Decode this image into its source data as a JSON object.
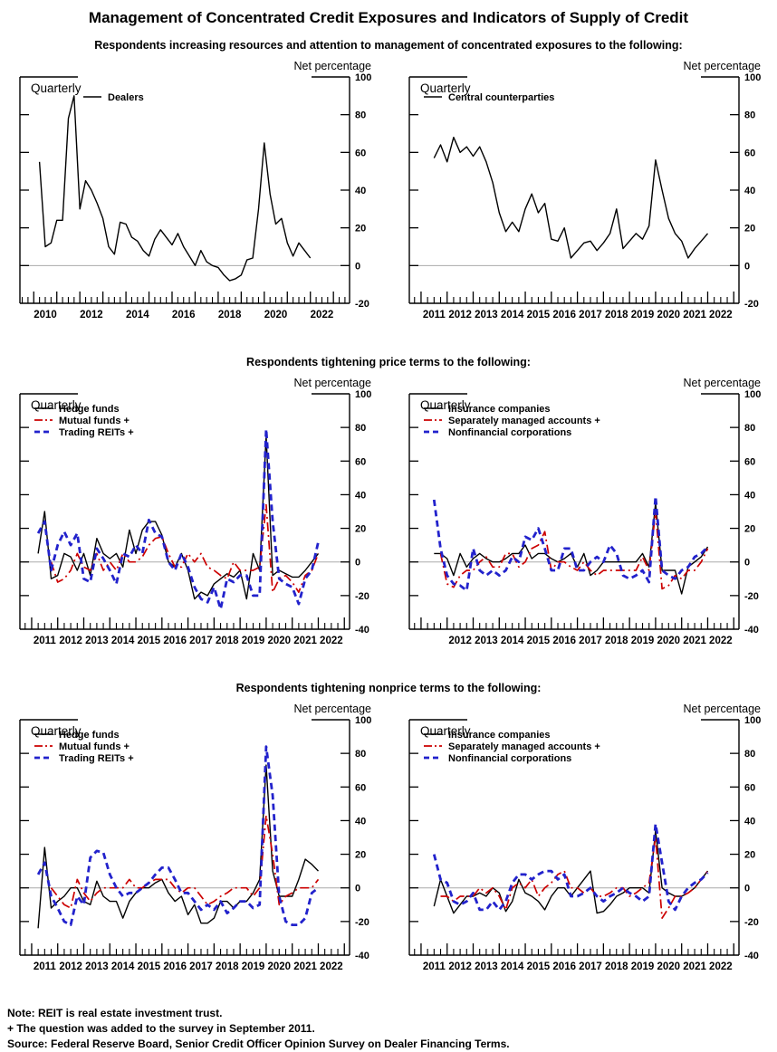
{
  "page": {
    "title": "Management of Concentrated Credit Exposures and Indicators of Supply of Credit",
    "notes": [
      "Note:  REIT is real estate investment trust.",
      "+ The question was added to the survey in September 2011.",
      "Source:  Federal Reserve Board, Senior Credit Officer Opinion Survey on Dealer Financing Terms."
    ]
  },
  "sections": [
    {
      "heading": "Respondents increasing resources and attention to management of concentrated exposures to the following:"
    },
    {
      "heading": "Respondents tightening price terms to the following:"
    },
    {
      "heading": "Respondents tightening nonprice terms to the following:"
    }
  ],
  "palette": {
    "black": "#000000",
    "red": "#cc0000",
    "blue": "#2222cc",
    "zero_line": "#aaaaaa"
  },
  "chart_data": [
    {
      "type": "line",
      "name": "dealers",
      "frequency_label": "Quarterly",
      "axis_label": "Net percentage",
      "ylim": [
        -20,
        100
      ],
      "ytick_step": 20,
      "xlim": [
        2009.4,
        2023.7
      ],
      "xlabel_years": [
        2010,
        2012,
        2014,
        2016,
        2018,
        2020,
        2022
      ],
      "series": [
        {
          "name": "Dealers",
          "color": "#000000",
          "style": "solid",
          "start": 2010.25,
          "step": 0.25,
          "values": [
            55,
            10,
            12,
            24,
            24,
            78,
            90,
            30,
            45,
            40,
            33,
            25,
            10,
            6,
            23,
            22,
            15,
            13,
            8,
            5,
            14,
            19,
            15,
            11,
            17,
            10,
            5,
            0,
            8,
            2,
            0,
            -1,
            -5,
            -8,
            -7,
            -5,
            3,
            4,
            30,
            65,
            38,
            22,
            25,
            12,
            5,
            12,
            8,
            4
          ]
        }
      ]
    },
    {
      "type": "line",
      "name": "central-counterparties",
      "frequency_label": "Quarterly",
      "axis_label": "Net percentage",
      "ylim": [
        -20,
        100
      ],
      "ytick_step": 20,
      "xlim": [
        2010.55,
        2023.2
      ],
      "xlabel_years": [
        2011,
        2012,
        2013,
        2014,
        2015,
        2016,
        2017,
        2018,
        2019,
        2020,
        2021,
        2022
      ],
      "series": [
        {
          "name": "Central counterparties",
          "color": "#000000",
          "style": "solid",
          "start": 2011.5,
          "step": 0.25,
          "values": [
            57,
            64,
            55,
            68,
            60,
            63,
            58,
            63,
            55,
            44,
            28,
            18,
            23,
            18,
            30,
            38,
            28,
            33,
            14,
            13,
            20,
            4,
            8,
            12,
            13,
            8,
            12,
            17,
            30,
            9,
            13,
            17,
            14,
            21,
            56,
            40,
            25,
            17,
            13,
            4,
            9,
            13,
            17
          ]
        }
      ]
    },
    {
      "type": "line",
      "name": "price-terms-funds",
      "frequency_label": "Quarterly",
      "axis_label": "Net percentage",
      "ylim": [
        -40,
        100
      ],
      "ytick_step": 20,
      "xlim": [
        2010.55,
        2023.2
      ],
      "xlabel_years": [
        2011,
        2012,
        2013,
        2014,
        2015,
        2016,
        2017,
        2018,
        2019,
        2020,
        2021,
        2022
      ],
      "series": [
        {
          "name": "Hedge funds",
          "color": "#000000",
          "style": "solid",
          "start": 2011.25,
          "step": 0.25,
          "values": [
            5,
            30,
            -10,
            -8,
            5,
            3,
            -5,
            5,
            -8,
            14,
            5,
            2,
            5,
            -3,
            19,
            5,
            19,
            24,
            24,
            16,
            0,
            -3,
            5,
            -5,
            -22,
            -18,
            -20,
            -13,
            -10,
            -7,
            -9,
            -5,
            -22,
            5,
            -5,
            75,
            -8,
            -5,
            -7,
            -9,
            -9,
            -5,
            0,
            5
          ]
        },
        {
          "name": "Mutual funds +",
          "color": "#cc0000",
          "style": "dashdot",
          "start": 2011.75,
          "step": 0.25,
          "values": [
            0,
            -12,
            -10,
            -5,
            5,
            -3,
            -5,
            5,
            -5,
            0,
            -5,
            5,
            0,
            0,
            3,
            10,
            14,
            15,
            5,
            -3,
            -3,
            5,
            0,
            5,
            -3,
            -5,
            -8,
            -10,
            0,
            -5,
            -5,
            -5,
            -3,
            34,
            -18,
            -10,
            -8,
            -12,
            -18,
            -8,
            -5,
            5
          ]
        },
        {
          "name": "Trading REITs +",
          "color": "#2222cc",
          "style": "dash",
          "start": 2011.25,
          "step": 0.25,
          "values": [
            17,
            24,
            -5,
            10,
            18,
            10,
            17,
            -10,
            -12,
            8,
            2,
            -5,
            -13,
            5,
            3,
            10,
            5,
            25,
            17,
            15,
            0,
            -5,
            5,
            -3,
            -15,
            -22,
            -24,
            -15,
            -28,
            -10,
            -12,
            -8,
            -8,
            -20,
            -20,
            79,
            24,
            -10,
            -13,
            -15,
            -25,
            -10,
            -5,
            12
          ]
        }
      ]
    },
    {
      "type": "line",
      "name": "price-terms-institutions",
      "frequency_label": "Quarterly",
      "axis_label": "Net percentage",
      "ylim": [
        -40,
        100
      ],
      "ytick_step": 20,
      "xlim": [
        2010.55,
        2023.2
      ],
      "xlabel_years": [
        2012,
        2013,
        2014,
        2015,
        2016,
        2017,
        2018,
        2019,
        2020,
        2021,
        2022
      ],
      "series": [
        {
          "name": "Insurance companies",
          "color": "#000000",
          "style": "solid",
          "start": 2011.5,
          "step": 0.25,
          "values": [
            5,
            5,
            2,
            -8,
            5,
            -3,
            2,
            5,
            2,
            0,
            0,
            2,
            5,
            5,
            10,
            2,
            5,
            5,
            2,
            0,
            2,
            5,
            -3,
            5,
            -8,
            -5,
            0,
            0,
            0,
            0,
            0,
            0,
            5,
            -3,
            35,
            -5,
            -5,
            -5,
            -19,
            -3,
            0,
            3,
            9
          ]
        },
        {
          "name": "Separately managed accounts +",
          "color": "#cc0000",
          "style": "dashdot",
          "start": 2011.75,
          "step": 0.25,
          "values": [
            5,
            -13,
            -15,
            -8,
            -5,
            -5,
            0,
            3,
            -3,
            -3,
            5,
            5,
            -3,
            0,
            8,
            10,
            18,
            -5,
            0,
            0,
            -3,
            -5,
            0,
            -5,
            -8,
            -5,
            -5,
            -5,
            -5,
            -5,
            -5,
            3,
            -5,
            30,
            -16,
            -14,
            -8,
            -10,
            -5,
            -5,
            0,
            8
          ]
        },
        {
          "name": "Nonfinancial corporations",
          "color": "#2222cc",
          "style": "dash",
          "start": 2011.5,
          "step": 0.25,
          "values": [
            37,
            8,
            -8,
            -13,
            -14,
            -17,
            8,
            -5,
            -8,
            -5,
            -8,
            -5,
            3,
            0,
            15,
            13,
            20,
            8,
            -5,
            -5,
            8,
            8,
            -5,
            -5,
            0,
            3,
            0,
            10,
            5,
            -8,
            -10,
            -8,
            -5,
            -12,
            39,
            -5,
            -8,
            -10,
            -5,
            -3,
            3,
            5,
            9
          ]
        }
      ]
    },
    {
      "type": "line",
      "name": "nonprice-terms-funds",
      "frequency_label": "Quarterly",
      "axis_label": "Net percentage",
      "ylim": [
        -40,
        100
      ],
      "ytick_step": 20,
      "xlim": [
        2010.55,
        2023.2
      ],
      "xlabel_years": [
        2011,
        2012,
        2013,
        2014,
        2015,
        2016,
        2017,
        2018,
        2019,
        2020,
        2021,
        2022
      ],
      "series": [
        {
          "name": "Hedge funds",
          "color": "#000000",
          "style": "solid",
          "start": 2011.25,
          "step": 0.25,
          "values": [
            -24,
            24,
            -12,
            -8,
            -5,
            0,
            0,
            -8,
            -10,
            4,
            -5,
            -8,
            -8,
            -18,
            -8,
            -3,
            0,
            0,
            3,
            5,
            -3,
            -8,
            -5,
            -16,
            -10,
            -21,
            -21,
            -18,
            -8,
            -8,
            -12,
            -8,
            -8,
            -3,
            5,
            73,
            10,
            -5,
            -5,
            -5,
            5,
            17,
            14,
            10
          ]
        },
        {
          "name": "Mutual funds +",
          "color": "#cc0000",
          "style": "dashdot",
          "start": 2011.75,
          "step": 0.25,
          "values": [
            0,
            -5,
            -10,
            -12,
            5,
            -3,
            -8,
            -3,
            0,
            0,
            0,
            0,
            5,
            0,
            0,
            3,
            5,
            5,
            5,
            0,
            -3,
            0,
            0,
            -5,
            -10,
            -8,
            -5,
            -3,
            0,
            0,
            0,
            -5,
            0,
            43,
            20,
            -10,
            -5,
            -3,
            0,
            0,
            0,
            5
          ]
        },
        {
          "name": "Trading REITs +",
          "color": "#2222cc",
          "style": "dash",
          "start": 2011.25,
          "step": 0.25,
          "values": [
            8,
            15,
            -5,
            -12,
            -20,
            -22,
            -5,
            -10,
            18,
            22,
            21,
            8,
            0,
            -5,
            -3,
            -3,
            0,
            3,
            8,
            12,
            12,
            5,
            -3,
            -3,
            -8,
            -13,
            -10,
            -13,
            -8,
            -15,
            -12,
            -8,
            -8,
            -12,
            -10,
            84,
            55,
            -5,
            -20,
            -22,
            -22,
            -18,
            -3,
            0
          ]
        }
      ]
    },
    {
      "type": "line",
      "name": "nonprice-terms-institutions",
      "frequency_label": "Quarterly",
      "axis_label": "Net percentage",
      "ylim": [
        -40,
        100
      ],
      "ytick_step": 20,
      "xlim": [
        2010.55,
        2023.2
      ],
      "xlabel_years": [
        2011,
        2012,
        2013,
        2014,
        2015,
        2016,
        2017,
        2018,
        2019,
        2020,
        2021,
        2022
      ],
      "series": [
        {
          "name": "Insurance companies",
          "color": "#000000",
          "style": "solid",
          "start": 2011.5,
          "step": 0.25,
          "values": [
            -11,
            5,
            -5,
            -15,
            -10,
            -5,
            -5,
            -3,
            -5,
            0,
            -3,
            -14,
            -8,
            5,
            -3,
            -5,
            -8,
            -13,
            -5,
            0,
            0,
            -5,
            0,
            5,
            10,
            -15,
            -14,
            -10,
            -5,
            -3,
            0,
            0,
            0,
            -3,
            34,
            0,
            -3,
            -5,
            -5,
            -3,
            0,
            5,
            10
          ]
        },
        {
          "name": "Separately managed accounts +",
          "color": "#cc0000",
          "style": "dashdot",
          "start": 2011.75,
          "step": 0.25,
          "values": [
            -5,
            -5,
            -8,
            -5,
            -5,
            -5,
            0,
            -3,
            0,
            -5,
            -13,
            0,
            3,
            0,
            5,
            -5,
            0,
            3,
            8,
            10,
            0,
            0,
            -3,
            0,
            -5,
            -5,
            -3,
            0,
            0,
            -5,
            -3,
            0,
            3,
            30,
            -18,
            -12,
            -5,
            -5,
            -3,
            0,
            5,
            10
          ]
        },
        {
          "name": "Nonfinancial corporations",
          "color": "#2222cc",
          "style": "dash",
          "start": 2011.5,
          "step": 0.25,
          "values": [
            20,
            5,
            3,
            -8,
            -10,
            -8,
            -3,
            -13,
            -13,
            -8,
            -13,
            -8,
            3,
            8,
            8,
            5,
            8,
            10,
            10,
            5,
            8,
            -5,
            -5,
            -3,
            0,
            -5,
            -8,
            -5,
            -3,
            0,
            -3,
            -5,
            -8,
            -5,
            38,
            15,
            -8,
            -13,
            -5,
            0,
            3,
            5,
            9
          ]
        }
      ]
    }
  ]
}
